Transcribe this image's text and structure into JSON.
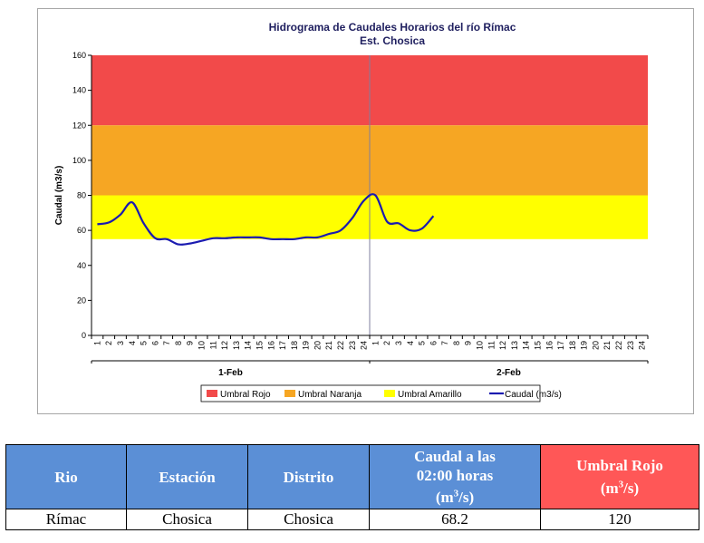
{
  "chart_data": {
    "type": "line",
    "title": "Hidrograma de Caudales Horarios del río Rímac",
    "subtitle": "Est. Chosica",
    "ylabel": "Caudal  (m3/s)",
    "ylim": [
      0,
      160
    ],
    "yticks": [
      0,
      20,
      40,
      60,
      80,
      100,
      120,
      140,
      160
    ],
    "xticks_per_day": [
      "1",
      "2",
      "3",
      "4",
      "5",
      "6",
      "7",
      "8",
      "9",
      "10",
      "11",
      "12",
      "13",
      "14",
      "15",
      "16",
      "17",
      "18",
      "19",
      "20",
      "21",
      "22",
      "23",
      "24"
    ],
    "days": [
      "1-Feb",
      "2-Feb"
    ],
    "thresholds": {
      "rojo": {
        "from": 120,
        "to": 160,
        "color": "#f24a4a"
      },
      "naranja": {
        "from": 80,
        "to": 120,
        "color": "#f6a623"
      },
      "amarillo": {
        "from": 55,
        "to": 80,
        "color": "#ffff00"
      }
    },
    "series": [
      {
        "name": "Caudal (m3/s)",
        "color": "#1b1bb0",
        "x": [
          1,
          2,
          3,
          4,
          5,
          6,
          7,
          8,
          9,
          10,
          11,
          12,
          13,
          14,
          15,
          16,
          17,
          18,
          19,
          20,
          21,
          22,
          23,
          24,
          25,
          26,
          27,
          28,
          29,
          30
        ],
        "values": [
          63.5,
          64.5,
          69,
          76,
          64,
          55.5,
          55,
          52,
          52.5,
          54,
          55.5,
          55.5,
          56,
          56,
          56,
          55,
          55,
          55,
          56,
          56,
          58,
          60,
          67,
          77,
          80,
          65,
          64,
          60,
          61,
          68.2
        ]
      }
    ],
    "legend": [
      {
        "label": "Umbral Rojo",
        "color": "#f24a4a",
        "kind": "box"
      },
      {
        "label": "Umbral Naranja",
        "color": "#f6a623",
        "kind": "box"
      },
      {
        "label": "Umbral Amarillo",
        "color": "#ffff00",
        "kind": "box"
      },
      {
        "label": "Caudal (m3/s)",
        "color": "#1b1bb0",
        "kind": "line"
      }
    ],
    "legend_position": "bottom",
    "grid": false
  },
  "table": {
    "headers": {
      "rio": "Rio",
      "estacion": "Estación",
      "distrito": "Distrito",
      "caudal_line1": "Caudal a las",
      "caudal_line2": "02:00 horas",
      "caudal_unit_pre": "(m",
      "caudal_unit_sup": "3",
      "caudal_unit_post": "/s)",
      "umbral_line1": "Umbral Rojo",
      "umbral_unit_pre": "(m",
      "umbral_unit_sup": "3",
      "umbral_unit_post": "/s)"
    },
    "row": {
      "rio": "Rímac",
      "estacion": "Chosica",
      "distrito": "Chosica",
      "caudal": "68.2",
      "umbral_rojo": "120"
    }
  }
}
